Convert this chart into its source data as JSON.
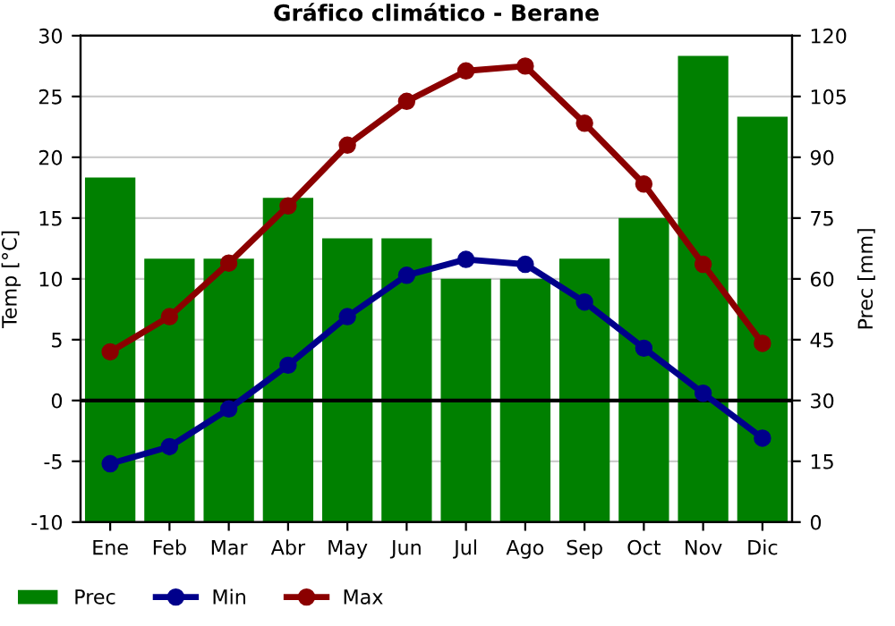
{
  "chart_data": {
    "type": "line",
    "title": "Gráfico climático - Berane",
    "ylabel": "Temp [°C]",
    "y2label": "Prec [mm]",
    "categories": [
      "Ene",
      "Feb",
      "Mar",
      "Abr",
      "May",
      "Jun",
      "Jul",
      "Ago",
      "Sep",
      "Oct",
      "Nov",
      "Dic"
    ],
    "series": [
      {
        "name": "Prec",
        "type": "bar",
        "axis": "y2",
        "color": "#008000",
        "values": [
          85,
          65,
          65,
          80,
          70,
          70,
          60,
          60,
          65,
          75,
          115,
          100
        ]
      },
      {
        "name": "Min",
        "color": "#00008b",
        "values": [
          -5.2,
          -3.8,
          -0.7,
          2.9,
          6.9,
          10.3,
          11.6,
          11.2,
          8.1,
          4.3,
          0.6,
          -3.1
        ]
      },
      {
        "name": "Max",
        "color": "#8b0000",
        "values": [
          4.0,
          6.9,
          11.3,
          16.0,
          21.0,
          24.6,
          27.1,
          27.5,
          22.8,
          17.8,
          11.2,
          4.7
        ]
      }
    ],
    "ylim": [
      -10,
      30
    ],
    "yticks": [
      -10,
      -5,
      0,
      5,
      10,
      15,
      20,
      25,
      30
    ],
    "y2lim": [
      0,
      120
    ],
    "y2ticks": [
      0,
      15,
      30,
      45,
      60,
      75,
      90,
      105,
      120
    ],
    "ref_lines": [
      {
        "axis": "y",
        "value": 0,
        "color": "#000000"
      }
    ],
    "grid": "y",
    "legend": "bottom left",
    "marker": "circle",
    "line_style": "solid"
  }
}
